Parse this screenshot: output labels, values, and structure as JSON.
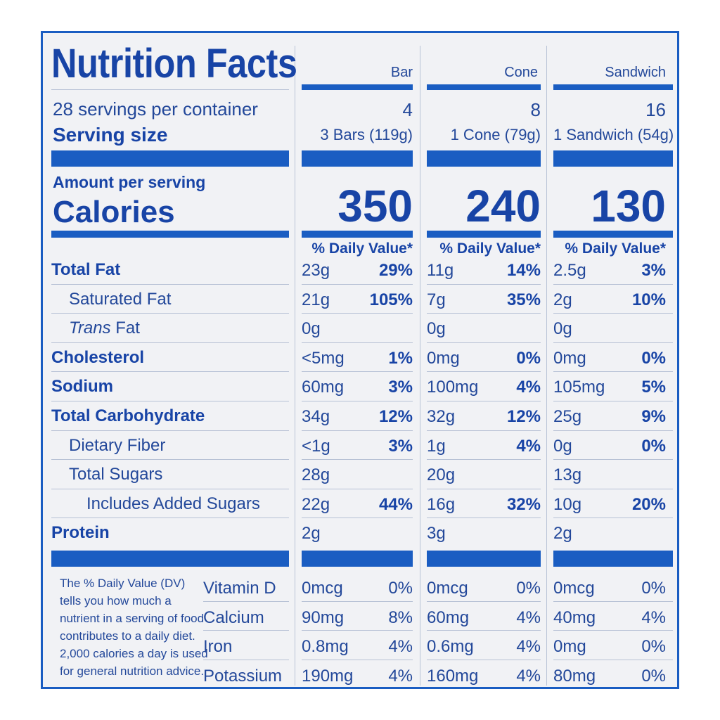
{
  "title": "Nutrition Facts",
  "servings_per_container": "28 servings per container",
  "serving_size_label": "Serving size",
  "amount_per_serving": "Amount per serving",
  "calories_label": "Calories",
  "daily_value_header": "% Daily Value*",
  "columns": [
    {
      "name": "Bar",
      "servings": "4",
      "serving_size": "3 Bars (119g)",
      "calories": "350"
    },
    {
      "name": "Cone",
      "servings": "8",
      "serving_size": "1 Cone (79g)",
      "calories": "240"
    },
    {
      "name": "Sandwich",
      "servings": "16",
      "serving_size": "1 Sandwich (54g)",
      "calories": "130"
    }
  ],
  "nutrients": [
    {
      "label": "Total Fat",
      "values": [
        [
          "23g",
          "29%"
        ],
        [
          "11g",
          "14%"
        ],
        [
          "2.5g",
          "3%"
        ]
      ]
    },
    {
      "label": "Saturated Fat",
      "values": [
        [
          "21g",
          "105%"
        ],
        [
          "7g",
          "35%"
        ],
        [
          "2g",
          "10%"
        ]
      ]
    },
    {
      "label": "Trans Fat",
      "label_prefix": "Trans",
      "label_suffix": " Fat",
      "values": [
        [
          "0g",
          ""
        ],
        [
          "0g",
          ""
        ],
        [
          "0g",
          ""
        ]
      ]
    },
    {
      "label": "Cholesterol",
      "values": [
        [
          "<5mg",
          "1%"
        ],
        [
          "0mg",
          "0%"
        ],
        [
          "0mg",
          "0%"
        ]
      ]
    },
    {
      "label": "Sodium",
      "values": [
        [
          "60mg",
          "3%"
        ],
        [
          "100mg",
          "4%"
        ],
        [
          "105mg",
          "5%"
        ]
      ]
    },
    {
      "label": "Total Carbohydrate",
      "values": [
        [
          "34g",
          "12%"
        ],
        [
          "32g",
          "12%"
        ],
        [
          "25g",
          "9%"
        ]
      ]
    },
    {
      "label": "Dietary Fiber",
      "values": [
        [
          "<1g",
          "3%"
        ],
        [
          "1g",
          "4%"
        ],
        [
          "0g",
          "0%"
        ]
      ]
    },
    {
      "label": "Total Sugars",
      "values": [
        [
          "28g",
          ""
        ],
        [
          "20g",
          ""
        ],
        [
          "13g",
          ""
        ]
      ]
    },
    {
      "label": "Includes Added Sugars",
      "values": [
        [
          "22g",
          "44%"
        ],
        [
          "16g",
          "32%"
        ],
        [
          "10g",
          "20%"
        ]
      ]
    },
    {
      "label": "Protein",
      "values": [
        [
          "2g",
          ""
        ],
        [
          "3g",
          ""
        ],
        [
          "2g",
          ""
        ]
      ]
    }
  ],
  "footnote_lines": [
    "The % Daily Value (DV)",
    "tells you how much a",
    "nutrient in a serving of food",
    "contributes to a daily diet.",
    "2,000 calories a day is used",
    "for general nutrition advice."
  ],
  "vitamins": [
    {
      "label": "Vitamin D",
      "values": [
        [
          "0mcg",
          "0%"
        ],
        [
          "0mcg",
          "0%"
        ],
        [
          "0mcg",
          "0%"
        ]
      ]
    },
    {
      "label": "Calcium",
      "values": [
        [
          "90mg",
          "8%"
        ],
        [
          "60mg",
          "4%"
        ],
        [
          "40mg",
          "4%"
        ]
      ]
    },
    {
      "label": "Iron",
      "values": [
        [
          "0.8mg",
          "4%"
        ],
        [
          "0.6mg",
          "4%"
        ],
        [
          "0mg",
          "0%"
        ]
      ]
    },
    {
      "label": "Potassium",
      "values": [
        [
          "190mg",
          "4%"
        ],
        [
          "160mg",
          "4%"
        ],
        [
          "80mg",
          "0%"
        ]
      ]
    }
  ],
  "colors": {
    "blue": "#1a5dc2",
    "text": "#1844a6",
    "background": "#f1f2f5"
  }
}
